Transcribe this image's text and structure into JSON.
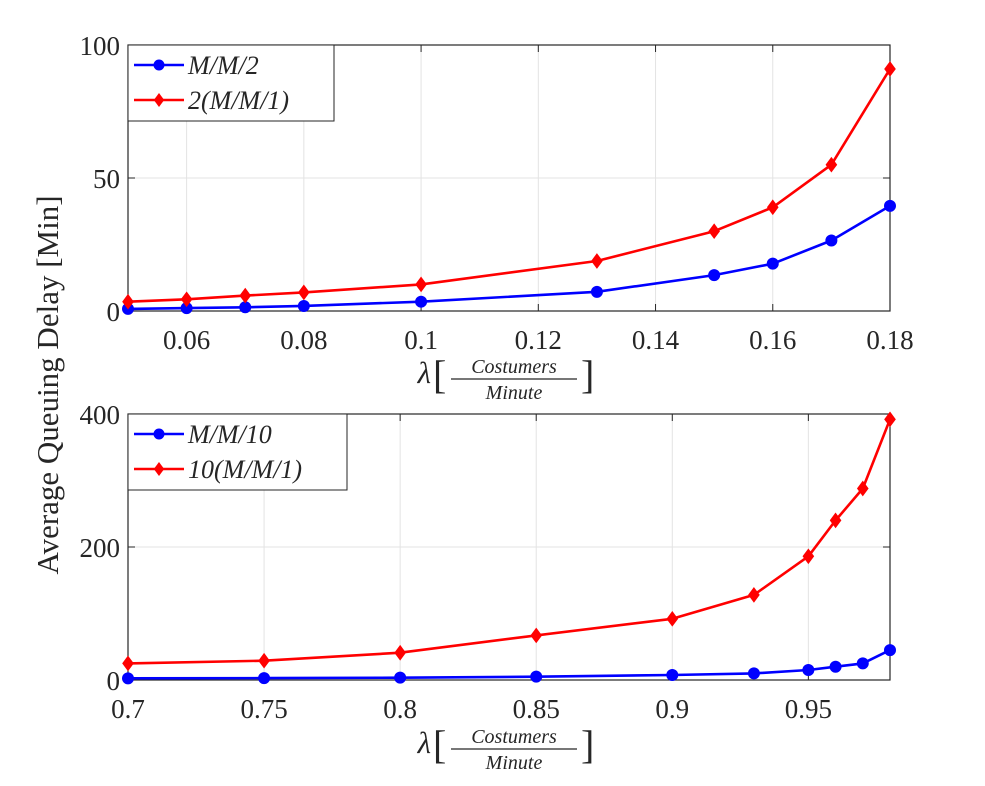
{
  "figure": {
    "ylabel": "Average Queuing Delay [Min]"
  },
  "chart_data": [
    {
      "type": "line",
      "x": [
        0.05,
        0.06,
        0.07,
        0.08,
        0.1,
        0.13,
        0.15,
        0.16,
        0.17,
        0.18
      ],
      "series": [
        {
          "name": "M/M/2",
          "color": "#0000ff",
          "marker": "circle",
          "values": [
            0.8,
            1.1,
            1.4,
            1.9,
            3.5,
            7.2,
            13.5,
            17.8,
            26.5,
            39.5
          ]
        },
        {
          "name": "2(M/M/1)",
          "color": "#ff0000",
          "marker": "diamond",
          "values": [
            3.5,
            4.4,
            5.8,
            7.0,
            10.0,
            18.8,
            30.0,
            39.0,
            55.0,
            91.0
          ]
        }
      ],
      "xlim": [
        0.05,
        0.18
      ],
      "ylim": [
        0,
        100
      ],
      "xticks": [
        "0.06",
        "0.08",
        "0.1",
        "0.12",
        "0.14",
        "0.16",
        "0.18"
      ],
      "yticks": [
        "0",
        "50",
        "100"
      ],
      "xlabel": {
        "symbol": "λ",
        "numerator": "Costumers",
        "denominator": "Minute"
      },
      "legend_position": "top-left",
      "grid": true
    },
    {
      "type": "line",
      "x": [
        0.7,
        0.75,
        0.8,
        0.85,
        0.9,
        0.93,
        0.95,
        0.96,
        0.97,
        0.98
      ],
      "series": [
        {
          "name": "M/M/10",
          "color": "#0000ff",
          "marker": "circle",
          "values": [
            2.5,
            2.8,
            3.5,
            5.0,
            7.5,
            10.0,
            15.0,
            20.0,
            25.0,
            45.0
          ]
        },
        {
          "name": "10(M/M/1)",
          "color": "#ff0000",
          "marker": "diamond",
          "values": [
            25.0,
            29.0,
            41.0,
            67.0,
            92.0,
            128.0,
            186.0,
            240.0,
            288.0,
            392.0
          ]
        }
      ],
      "xlim": [
        0.7,
        0.98
      ],
      "ylim": [
        0,
        400
      ],
      "xticks": [
        "0.7",
        "0.75",
        "0.8",
        "0.85",
        "0.9",
        "0.95"
      ],
      "yticks": [
        "0",
        "200",
        "400"
      ],
      "xlabel": {
        "symbol": "λ",
        "numerator": "Costumers",
        "denominator": "Minute"
      },
      "legend_position": "top-left",
      "grid": true
    }
  ]
}
